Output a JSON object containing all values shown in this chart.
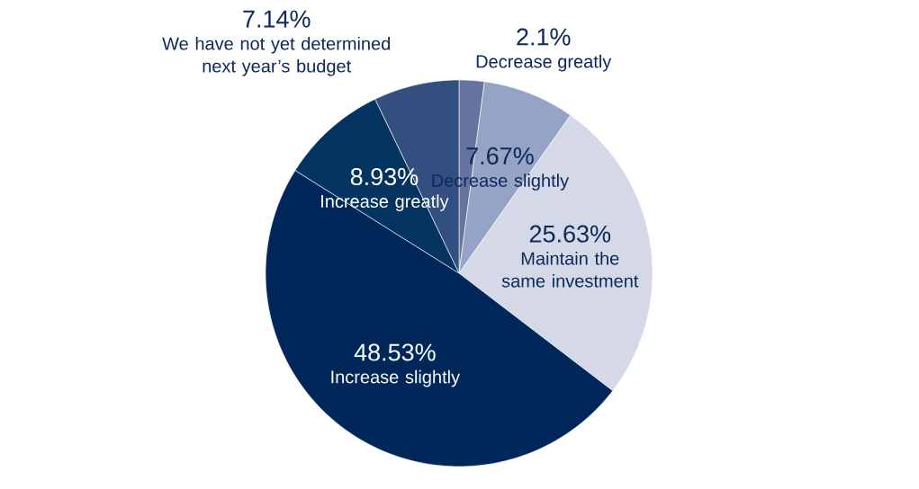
{
  "chart_data": {
    "type": "pie",
    "categories": [
      "Decrease greatly",
      "Decrease slightly",
      "Maintain the same investment",
      "Increase slightly",
      "Increase greatly",
      "We have not yet determined next year’s budget"
    ],
    "values": [
      2.1,
      7.67,
      25.63,
      48.53,
      8.93,
      7.14
    ],
    "value_labels": [
      "2.1%",
      "7.67%",
      "25.63%",
      "48.53%",
      "8.93%",
      "7.14%"
    ],
    "colors": [
      "#64749f",
      "#95a3c4",
      "#d5d9e7",
      "#00275a",
      "#03335f",
      "#324f80"
    ]
  }
}
